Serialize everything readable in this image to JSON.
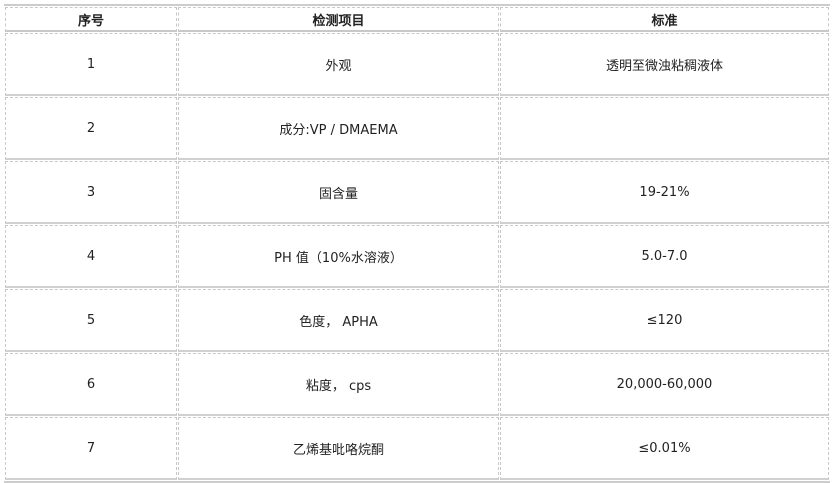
{
  "headers": [
    "序号",
    "检测项目",
    "标准"
  ],
  "rows": [
    {
      "no": "1",
      "item": "外观",
      "standard": "透明至微浊粘稠液体"
    },
    {
      "no": "2",
      "item": "成分:VP / DMAEMA",
      "standard": ""
    },
    {
      "no": "3",
      "item": "固含量",
      "standard": "19-21%"
    },
    {
      "no": "4",
      "item": "PH 值（10%水溶液）",
      "standard": "5.0-7.0"
    },
    {
      "no": "5",
      "item": "色度， APHA",
      "standard": "≤120"
    },
    {
      "no": "6",
      "item": "粘度， cps",
      "standard": "20,000-60,000"
    },
    {
      "no": "7",
      "item": "乙烯基吡咯烷酮",
      "standard": "≤0.01%"
    }
  ]
}
